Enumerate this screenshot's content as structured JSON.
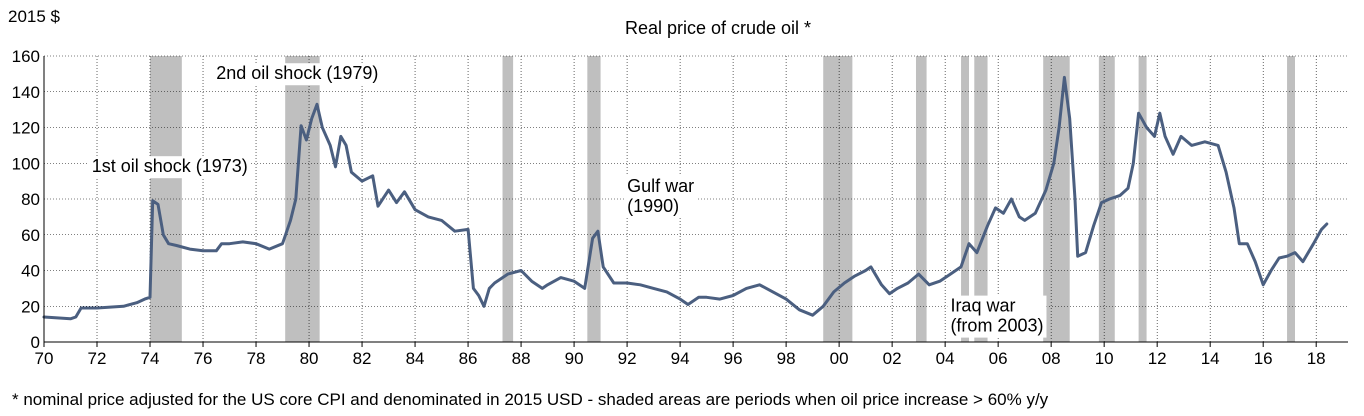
{
  "chart_data": {
    "type": "line",
    "title": "Real price of crude oil *",
    "ylabel": "2015 $",
    "xlabel": "",
    "xlim": [
      1970,
      2019.2
    ],
    "ylim": [
      0,
      160
    ],
    "y_ticks": [
      0,
      20,
      40,
      60,
      80,
      100,
      120,
      140,
      160
    ],
    "x_ticks": [
      {
        "label": "70",
        "value": 1970
      },
      {
        "label": "72",
        "value": 1972
      },
      {
        "label": "74",
        "value": 1974
      },
      {
        "label": "76",
        "value": 1976
      },
      {
        "label": "78",
        "value": 1978
      },
      {
        "label": "80",
        "value": 1980
      },
      {
        "label": "82",
        "value": 1982
      },
      {
        "label": "84",
        "value": 1984
      },
      {
        "label": "86",
        "value": 1986
      },
      {
        "label": "88",
        "value": 1988
      },
      {
        "label": "90",
        "value": 1990
      },
      {
        "label": "92",
        "value": 1992
      },
      {
        "label": "94",
        "value": 1994
      },
      {
        "label": "96",
        "value": 1996
      },
      {
        "label": "98",
        "value": 1998
      },
      {
        "label": "00",
        "value": 2000
      },
      {
        "label": "02",
        "value": 2002
      },
      {
        "label": "04",
        "value": 2004
      },
      {
        "label": "06",
        "value": 2006
      },
      {
        "label": "08",
        "value": 2008
      },
      {
        "label": "10",
        "value": 2010
      },
      {
        "label": "12",
        "value": 2012
      },
      {
        "label": "14",
        "value": 2014
      },
      {
        "label": "16",
        "value": 2016
      },
      {
        "label": "18",
        "value": 2018
      }
    ],
    "grid": true,
    "line_color": "#4b5f80",
    "shade_color": "#bfbfbf",
    "shaded_periods": [
      [
        1974.0,
        1975.2
      ],
      [
        1979.1,
        1980.4
      ],
      [
        1987.3,
        1987.7
      ],
      [
        1990.5,
        1991.0
      ],
      [
        1999.4,
        2000.5
      ],
      [
        2002.9,
        2003.3
      ],
      [
        2004.6,
        2004.9
      ],
      [
        2005.1,
        2005.6
      ],
      [
        2007.7,
        2008.7
      ],
      [
        2009.8,
        2010.4
      ],
      [
        2011.3,
        2011.6
      ],
      [
        2016.9,
        2017.2
      ]
    ],
    "series": [
      {
        "values": [
          [
            1970.0,
            14
          ],
          [
            1971.0,
            13
          ],
          [
            1971.2,
            14
          ],
          [
            1971.4,
            19
          ],
          [
            1972.0,
            19
          ],
          [
            1973.0,
            20
          ],
          [
            1973.5,
            22
          ],
          [
            1973.8,
            24
          ],
          [
            1974.0,
            25
          ],
          [
            1974.1,
            79
          ],
          [
            1974.3,
            77
          ],
          [
            1974.5,
            60
          ],
          [
            1974.7,
            55
          ],
          [
            1975.0,
            54
          ],
          [
            1975.5,
            52
          ],
          [
            1976.0,
            51
          ],
          [
            1976.5,
            51
          ],
          [
            1976.7,
            55
          ],
          [
            1977.0,
            55
          ],
          [
            1977.5,
            56
          ],
          [
            1978.0,
            55
          ],
          [
            1978.5,
            52
          ],
          [
            1979.0,
            55
          ],
          [
            1979.3,
            68
          ],
          [
            1979.5,
            80
          ],
          [
            1979.7,
            121
          ],
          [
            1979.9,
            113
          ],
          [
            1980.1,
            125
          ],
          [
            1980.3,
            133
          ],
          [
            1980.5,
            120
          ],
          [
            1980.8,
            110
          ],
          [
            1981.0,
            98
          ],
          [
            1981.2,
            115
          ],
          [
            1981.4,
            110
          ],
          [
            1981.6,
            95
          ],
          [
            1982.0,
            90
          ],
          [
            1982.4,
            93
          ],
          [
            1982.6,
            76
          ],
          [
            1983.0,
            85
          ],
          [
            1983.3,
            78
          ],
          [
            1983.6,
            84
          ],
          [
            1984.0,
            74
          ],
          [
            1984.5,
            70
          ],
          [
            1985.0,
            68
          ],
          [
            1985.5,
            62
          ],
          [
            1986.0,
            63
          ],
          [
            1986.2,
            30
          ],
          [
            1986.4,
            26
          ],
          [
            1986.6,
            20
          ],
          [
            1986.8,
            30
          ],
          [
            1987.0,
            33
          ],
          [
            1987.5,
            38
          ],
          [
            1988.0,
            40
          ],
          [
            1988.4,
            34
          ],
          [
            1988.8,
            30
          ],
          [
            1989.0,
            32
          ],
          [
            1989.5,
            36
          ],
          [
            1990.0,
            34
          ],
          [
            1990.4,
            30
          ],
          [
            1990.7,
            58
          ],
          [
            1990.9,
            62
          ],
          [
            1991.1,
            42
          ],
          [
            1991.5,
            33
          ],
          [
            1992.0,
            33
          ],
          [
            1992.5,
            32
          ],
          [
            1993.0,
            30
          ],
          [
            1993.5,
            28
          ],
          [
            1994.0,
            24
          ],
          [
            1994.3,
            21
          ],
          [
            1994.7,
            25
          ],
          [
            1995.0,
            25
          ],
          [
            1995.5,
            24
          ],
          [
            1996.0,
            26
          ],
          [
            1996.5,
            30
          ],
          [
            1997.0,
            32
          ],
          [
            1997.5,
            28
          ],
          [
            1998.0,
            24
          ],
          [
            1998.5,
            18
          ],
          [
            1999.0,
            15
          ],
          [
            1999.4,
            20
          ],
          [
            1999.8,
            28
          ],
          [
            2000.2,
            33
          ],
          [
            2000.6,
            37
          ],
          [
            2001.0,
            40
          ],
          [
            2001.2,
            42
          ],
          [
            2001.6,
            32
          ],
          [
            2001.9,
            27
          ],
          [
            2002.2,
            30
          ],
          [
            2002.6,
            33
          ],
          [
            2003.0,
            38
          ],
          [
            2003.4,
            32
          ],
          [
            2003.8,
            34
          ],
          [
            2004.2,
            38
          ],
          [
            2004.6,
            42
          ],
          [
            2004.9,
            55
          ],
          [
            2005.2,
            50
          ],
          [
            2005.6,
            65
          ],
          [
            2005.9,
            75
          ],
          [
            2006.2,
            72
          ],
          [
            2006.5,
            80
          ],
          [
            2006.8,
            70
          ],
          [
            2007.0,
            68
          ],
          [
            2007.4,
            72
          ],
          [
            2007.8,
            85
          ],
          [
            2008.1,
            100
          ],
          [
            2008.3,
            120
          ],
          [
            2008.5,
            148
          ],
          [
            2008.7,
            125
          ],
          [
            2008.9,
            80
          ],
          [
            2009.0,
            48
          ],
          [
            2009.3,
            50
          ],
          [
            2009.6,
            65
          ],
          [
            2009.9,
            78
          ],
          [
            2010.2,
            80
          ],
          [
            2010.6,
            82
          ],
          [
            2010.9,
            86
          ],
          [
            2011.1,
            100
          ],
          [
            2011.3,
            128
          ],
          [
            2011.6,
            120
          ],
          [
            2011.9,
            115
          ],
          [
            2012.1,
            128
          ],
          [
            2012.3,
            115
          ],
          [
            2012.6,
            105
          ],
          [
            2012.9,
            115
          ],
          [
            2013.3,
            110
          ],
          [
            2013.8,
            112
          ],
          [
            2014.3,
            110
          ],
          [
            2014.6,
            95
          ],
          [
            2014.9,
            75
          ],
          [
            2015.1,
            55
          ],
          [
            2015.4,
            55
          ],
          [
            2015.7,
            45
          ],
          [
            2016.0,
            32
          ],
          [
            2016.3,
            40
          ],
          [
            2016.6,
            47
          ],
          [
            2016.9,
            48
          ],
          [
            2017.2,
            50
          ],
          [
            2017.5,
            45
          ],
          [
            2017.9,
            55
          ],
          [
            2018.2,
            63
          ],
          [
            2018.4,
            66
          ]
        ]
      }
    ],
    "annotations": [
      {
        "lines": [
          "1st oil shock (1973)"
        ],
        "x": 1971.8,
        "y": 95
      },
      {
        "lines": [
          "2nd oil shock (1979)"
        ],
        "x": 1976.5,
        "y": 147
      },
      {
        "lines": [
          "Gulf war",
          "(1990)"
        ],
        "x": 1992.0,
        "y": 84
      },
      {
        "lines": [
          "Iraq war",
          "(from 2003)"
        ],
        "x": 2004.2,
        "y": 17
      }
    ]
  },
  "footnote": "* nominal price adjusted for the US core CPI and  denominated in 2015 USD - shaded areas are periods when oil  price increase  > 60% y/y"
}
